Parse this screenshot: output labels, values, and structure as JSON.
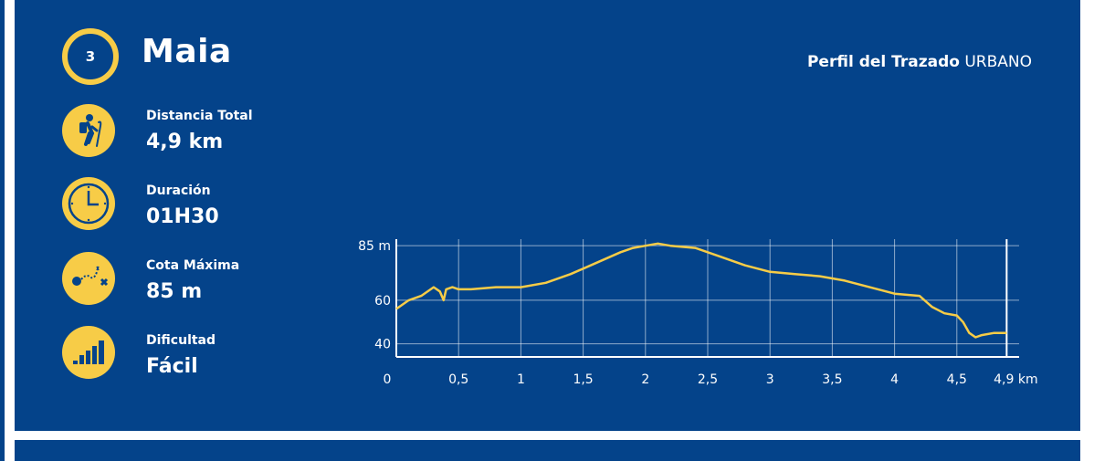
{
  "route": {
    "number": "3",
    "name": "Maia"
  },
  "header": {
    "title_bold": "Perfil del Trazado",
    "title_rest": "URBANO"
  },
  "stats": [
    {
      "icon": "hiker-icon",
      "label": "Distancia Total",
      "value": "4,9 km"
    },
    {
      "icon": "clock-icon",
      "label": "Duración",
      "value": "01H30"
    },
    {
      "icon": "route-path-icon",
      "label": "Cota Máxima",
      "value": "85 m"
    },
    {
      "icon": "difficulty-bars-icon",
      "label": "Dificultad",
      "value": "Fácil"
    }
  ],
  "colors": {
    "background": "#04438a",
    "accent": "#f7cc47",
    "line": "#f7cc47"
  },
  "chart_data": {
    "type": "line",
    "xlim": [
      0,
      5
    ],
    "ylim": [
      34,
      88
    ],
    "x_ticks": [
      {
        "value": 0,
        "label": "0"
      },
      {
        "value": 0.5,
        "label": "0,5"
      },
      {
        "value": 1,
        "label": "1"
      },
      {
        "value": 1.5,
        "label": "1,5"
      },
      {
        "value": 2,
        "label": "2"
      },
      {
        "value": 2.5,
        "label": "2,5"
      },
      {
        "value": 3,
        "label": "3"
      },
      {
        "value": 3.5,
        "label": "3,5"
      },
      {
        "value": 4,
        "label": "4"
      },
      {
        "value": 4.5,
        "label": "4,5"
      },
      {
        "value": 4.9,
        "label": "4,9 km"
      }
    ],
    "y_ticks": [
      {
        "value": 40,
        "label": "40"
      },
      {
        "value": 60,
        "label": "60"
      },
      {
        "value": 85,
        "label": "85 m"
      }
    ],
    "grid": true,
    "x": [
      0,
      0.1,
      0.2,
      0.3,
      0.35,
      0.38,
      0.4,
      0.45,
      0.5,
      0.6,
      0.8,
      1.0,
      1.2,
      1.4,
      1.6,
      1.8,
      1.9,
      2.0,
      2.1,
      2.2,
      2.4,
      2.6,
      2.8,
      3.0,
      3.2,
      3.4,
      3.6,
      3.8,
      4.0,
      4.2,
      4.3,
      4.4,
      4.5,
      4.55,
      4.6,
      4.65,
      4.7,
      4.8,
      4.9
    ],
    "series": [
      {
        "values": [
          56,
          60,
          62,
          66,
          64,
          60,
          65,
          66,
          65,
          65,
          66,
          66,
          68,
          72,
          77,
          82,
          84,
          85,
          86,
          85,
          84,
          80,
          76,
          73,
          72,
          71,
          69,
          66,
          63,
          62,
          57,
          54,
          53,
          50,
          45,
          43,
          44,
          45,
          45
        ]
      }
    ]
  }
}
